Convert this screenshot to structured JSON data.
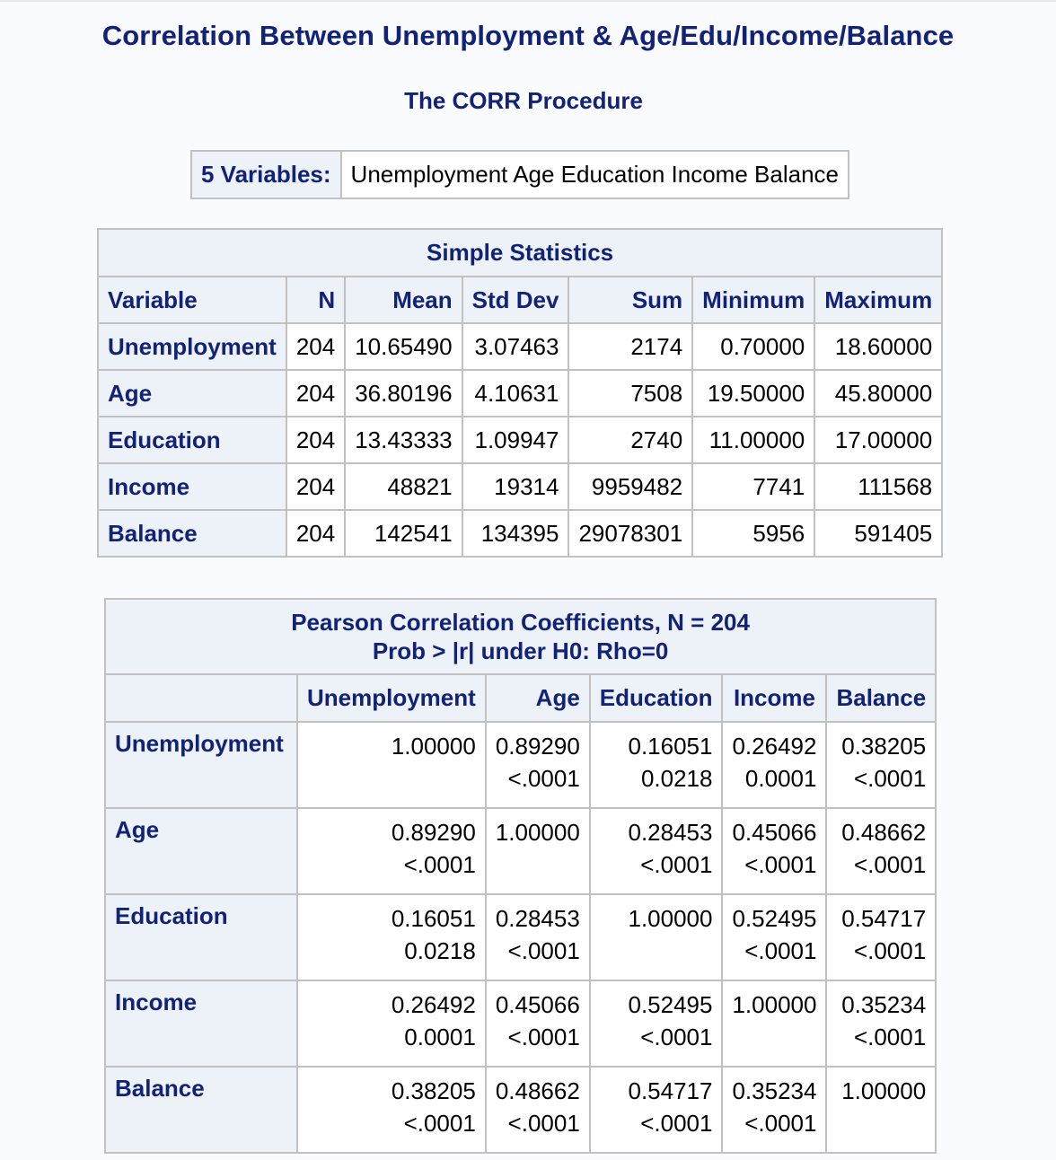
{
  "title": "Correlation Between Unemployment & Age/Edu/Income/Balance",
  "procedure": "The CORR Procedure",
  "variables": {
    "label": "5 Variables:",
    "value": "Unemployment Age Education Income Balance"
  },
  "simple_stats": {
    "caption": "Simple Statistics",
    "headers": [
      "Variable",
      "N",
      "Mean",
      "Std Dev",
      "Sum",
      "Minimum",
      "Maximum"
    ],
    "rows": [
      {
        "variable": "Unemployment",
        "n": "204",
        "mean": "10.65490",
        "std": "3.07463",
        "sum": "2174",
        "min": "0.70000",
        "max": "18.60000"
      },
      {
        "variable": "Age",
        "n": "204",
        "mean": "36.80196",
        "std": "4.10631",
        "sum": "7508",
        "min": "19.50000",
        "max": "45.80000"
      },
      {
        "variable": "Education",
        "n": "204",
        "mean": "13.43333",
        "std": "1.09947",
        "sum": "2740",
        "min": "11.00000",
        "max": "17.00000"
      },
      {
        "variable": "Income",
        "n": "204",
        "mean": "48821",
        "std": "19314",
        "sum": "9959482",
        "min": "7741",
        "max": "111568"
      },
      {
        "variable": "Balance",
        "n": "204",
        "mean": "142541",
        "std": "134395",
        "sum": "29078301",
        "min": "5956",
        "max": "591405"
      }
    ]
  },
  "pearson": {
    "caption_line1": "Pearson Correlation Coefficients, N = 204",
    "caption_line2": "Prob > |r| under H0: Rho=0",
    "headers": [
      "Unemployment",
      "Age",
      "Education",
      "Income",
      "Balance"
    ],
    "rows": [
      {
        "label": "Unemployment",
        "cells": [
          {
            "r": "1.00000",
            "p": ""
          },
          {
            "r": "0.89290",
            "p": "<.0001"
          },
          {
            "r": "0.16051",
            "p": "0.0218"
          },
          {
            "r": "0.26492",
            "p": "0.0001"
          },
          {
            "r": "0.38205",
            "p": "<.0001"
          }
        ]
      },
      {
        "label": "Age",
        "cells": [
          {
            "r": "0.89290",
            "p": "<.0001"
          },
          {
            "r": "1.00000",
            "p": ""
          },
          {
            "r": "0.28453",
            "p": "<.0001"
          },
          {
            "r": "0.45066",
            "p": "<.0001"
          },
          {
            "r": "0.48662",
            "p": "<.0001"
          }
        ]
      },
      {
        "label": "Education",
        "cells": [
          {
            "r": "0.16051",
            "p": "0.0218"
          },
          {
            "r": "0.28453",
            "p": "<.0001"
          },
          {
            "r": "1.00000",
            "p": ""
          },
          {
            "r": "0.52495",
            "p": "<.0001"
          },
          {
            "r": "0.54717",
            "p": "<.0001"
          }
        ]
      },
      {
        "label": "Income",
        "cells": [
          {
            "r": "0.26492",
            "p": "0.0001"
          },
          {
            "r": "0.45066",
            "p": "<.0001"
          },
          {
            "r": "0.52495",
            "p": "<.0001"
          },
          {
            "r": "1.00000",
            "p": ""
          },
          {
            "r": "0.35234",
            "p": "<.0001"
          }
        ]
      },
      {
        "label": "Balance",
        "cells": [
          {
            "r": "0.38205",
            "p": "<.0001"
          },
          {
            "r": "0.48662",
            "p": "<.0001"
          },
          {
            "r": "0.54717",
            "p": "<.0001"
          },
          {
            "r": "0.35234",
            "p": "<.0001"
          },
          {
            "r": "1.00000",
            "p": ""
          }
        ]
      }
    ]
  }
}
